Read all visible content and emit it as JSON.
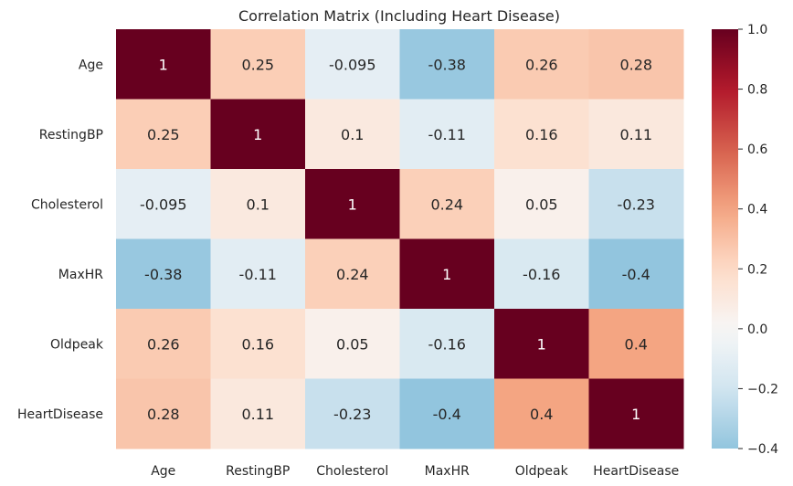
{
  "chart_data": {
    "type": "heatmap",
    "title": "Correlation Matrix (Including Heart Disease)",
    "rows": [
      "Age",
      "RestingBP",
      "Cholesterol",
      "MaxHR",
      "Oldpeak",
      "HeartDisease"
    ],
    "columns": [
      "Age",
      "RestingBP",
      "Cholesterol",
      "MaxHR",
      "Oldpeak",
      "HeartDisease"
    ],
    "values": [
      [
        1,
        0.25,
        -0.095,
        -0.38,
        0.26,
        0.28
      ],
      [
        0.25,
        1,
        0.1,
        -0.11,
        0.16,
        0.11
      ],
      [
        -0.095,
        0.1,
        1,
        0.24,
        0.05,
        -0.23
      ],
      [
        -0.38,
        -0.11,
        0.24,
        1,
        -0.16,
        -0.4
      ],
      [
        0.26,
        0.16,
        0.05,
        -0.16,
        1,
        0.4
      ],
      [
        0.28,
        0.11,
        -0.23,
        -0.4,
        0.4,
        1
      ]
    ],
    "annotations": [
      [
        "1",
        "0.25",
        "-0.095",
        "-0.38",
        "0.26",
        "0.28"
      ],
      [
        "0.25",
        "1",
        "0.1",
        "-0.11",
        "0.16",
        "0.11"
      ],
      [
        "-0.095",
        "0.1",
        "1",
        "0.24",
        "0.05",
        "-0.23"
      ],
      [
        "-0.38",
        "-0.11",
        "0.24",
        "1",
        "-0.16",
        "-0.4"
      ],
      [
        "0.26",
        "0.16",
        "0.05",
        "-0.16",
        "1",
        "0.4"
      ],
      [
        "0.28",
        "0.11",
        "-0.23",
        "-0.4",
        "0.4",
        "1"
      ]
    ],
    "colormap": "RdBu_r",
    "color_center": 0,
    "vmin": -0.4,
    "vmax": 1.0,
    "colorbar_ticks": [
      1.0,
      0.8,
      0.6,
      0.4,
      0.2,
      0.0,
      -0.2,
      -0.4
    ],
    "colorbar_tick_labels": [
      "1.0",
      "0.8",
      "0.6",
      "0.4",
      "0.2",
      "0.0",
      "−0.2",
      "−0.4"
    ]
  }
}
